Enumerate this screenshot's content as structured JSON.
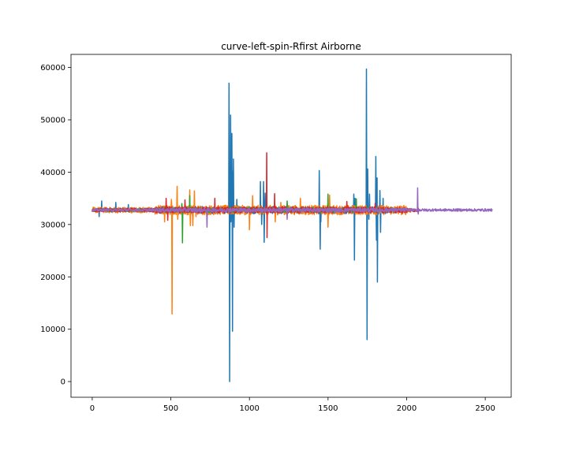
{
  "chart_data": {
    "type": "line",
    "title": "curve-left-spin-Rfirst Airborne",
    "xlabel": "",
    "ylabel": "",
    "xlim": [
      -135,
      2665
    ],
    "ylim": [
      -3000,
      62500
    ],
    "xticks": [
      0,
      500,
      1000,
      1500,
      2000,
      2500
    ],
    "yticks": [
      0,
      10000,
      20000,
      30000,
      40000,
      50000,
      60000
    ],
    "grid": false,
    "baseline": 32768,
    "series": [
      {
        "color": "#1f77b4",
        "length": 1870,
        "noise": 700,
        "spikes": [
          [
            45,
            31500
          ],
          [
            60,
            34500
          ],
          [
            150,
            34200
          ],
          [
            230,
            33800
          ],
          [
            640,
            31000
          ],
          [
            870,
            57000
          ],
          [
            875,
            0
          ],
          [
            880,
            50900
          ],
          [
            883,
            30500
          ],
          [
            888,
            47400
          ],
          [
            892,
            9600
          ],
          [
            895,
            40200
          ],
          [
            898,
            42500
          ],
          [
            903,
            29500
          ],
          [
            920,
            34800
          ],
          [
            1070,
            38200
          ],
          [
            1078,
            30000
          ],
          [
            1090,
            38200
          ],
          [
            1095,
            26600
          ],
          [
            1100,
            36000
          ],
          [
            1445,
            40300
          ],
          [
            1450,
            25300
          ],
          [
            1455,
            30500
          ],
          [
            1665,
            35800
          ],
          [
            1668,
            23200
          ],
          [
            1672,
            35000
          ],
          [
            1745,
            59700
          ],
          [
            1748,
            8000
          ],
          [
            1752,
            40600
          ],
          [
            1760,
            31000
          ],
          [
            1765,
            35800
          ],
          [
            1775,
            32500
          ],
          [
            1805,
            43000
          ],
          [
            1808,
            27000
          ],
          [
            1812,
            38900
          ],
          [
            1815,
            19000
          ],
          [
            1820,
            32000
          ],
          [
            1830,
            36500
          ],
          [
            1835,
            28500
          ],
          [
            1850,
            35000
          ]
        ]
      },
      {
        "color": "#ff7f0e",
        "length": 2030,
        "noise": 900,
        "spikes": [
          [
            460,
            30500
          ],
          [
            505,
            34800
          ],
          [
            508,
            12900
          ],
          [
            512,
            33500
          ],
          [
            540,
            37300
          ],
          [
            545,
            31000
          ],
          [
            620,
            36600
          ],
          [
            625,
            29800
          ],
          [
            640,
            29800
          ],
          [
            650,
            36400
          ],
          [
            660,
            31500
          ],
          [
            1000,
            29000
          ],
          [
            1020,
            35500
          ],
          [
            1165,
            30500
          ],
          [
            1200,
            34200
          ],
          [
            1325,
            35000
          ],
          [
            1500,
            29500
          ],
          [
            1510,
            35600
          ]
        ]
      },
      {
        "color": "#2ca02c",
        "length": 1930,
        "noise": 500,
        "spikes": [
          [
            570,
            34000
          ],
          [
            575,
            26500
          ],
          [
            620,
            35500
          ],
          [
            1240,
            34500
          ],
          [
            1500,
            35800
          ],
          [
            1680,
            34900
          ]
        ]
      },
      {
        "color": "#d62728",
        "length": 2080,
        "noise": 600,
        "spikes": [
          [
            470,
            35000
          ],
          [
            480,
            30800
          ],
          [
            590,
            34700
          ],
          [
            780,
            35000
          ],
          [
            1110,
            43700
          ],
          [
            1113,
            27500
          ],
          [
            1160,
            35900
          ],
          [
            1620,
            34400
          ],
          [
            1800,
            34000
          ]
        ]
      },
      {
        "color": "#9467bd",
        "length": 2545,
        "noise": 400,
        "spikes": [
          [
            730,
            29500
          ],
          [
            1240,
            31000
          ],
          [
            2070,
            37000
          ],
          [
            2075,
            32000
          ]
        ]
      }
    ]
  }
}
